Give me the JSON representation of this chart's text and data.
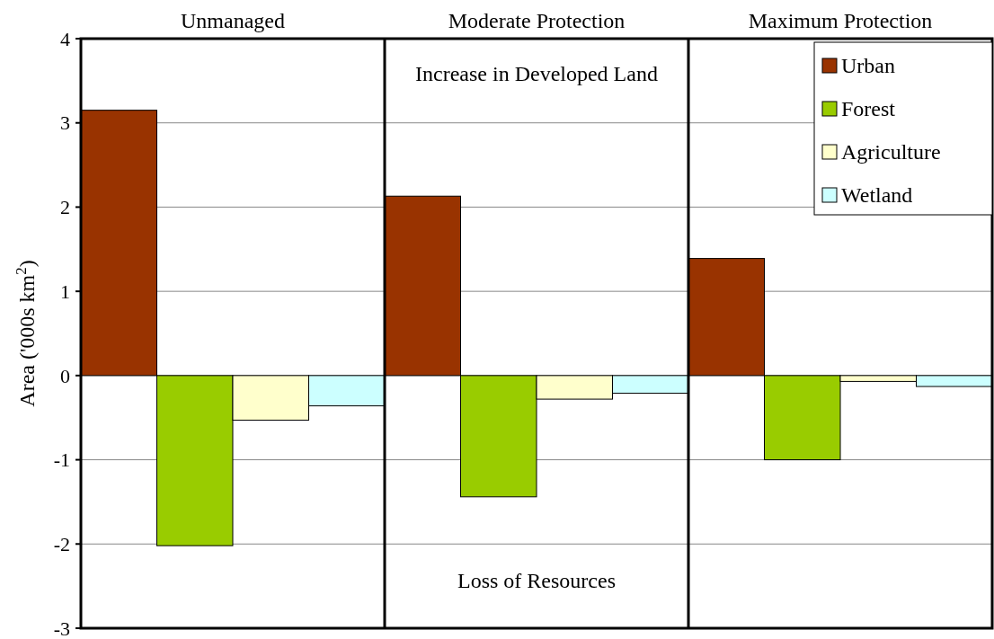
{
  "chart_data": {
    "type": "bar",
    "ylabel": "Area ('000s km$^{2}$)",
    "categories": [
      "Unmanaged",
      "Moderate Protection",
      "Maximum Protection"
    ],
    "series": [
      {
        "name": "Urban",
        "color": "#993300",
        "values": [
          3.15,
          2.13,
          1.39
        ]
      },
      {
        "name": "Forest",
        "color": "#99cc00",
        "values": [
          -2.02,
          -1.44,
          -1.0
        ]
      },
      {
        "name": "Agriculture",
        "color": "#ffffcc",
        "values": [
          -0.53,
          -0.28,
          -0.07
        ]
      },
      {
        "name": "Wetland",
        "color": "#ccffff",
        "values": [
          -0.36,
          -0.21,
          -0.13
        ]
      }
    ],
    "ylim": [
      -3,
      4
    ],
    "yticks": [
      -3,
      -2,
      -1,
      0,
      1,
      2,
      3,
      4
    ],
    "grid": "y",
    "legend": "top right",
    "annotations": [
      "Increase in Developed Land",
      "Loss of Resources"
    ]
  }
}
